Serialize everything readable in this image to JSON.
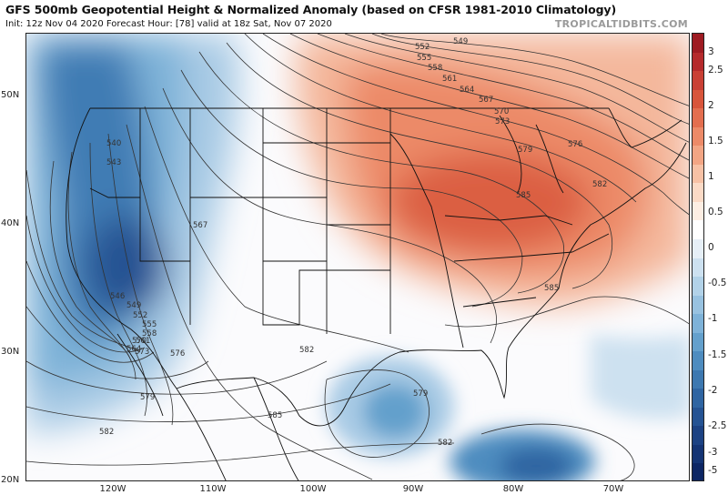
{
  "header": {
    "title": "GFS 500mb Geopotential Height & Normalized Anomaly (based on CFSR 1981-2010 Climatology)",
    "subtitle": "Init: 12z Nov 04 2020   Forecast Hour: [78]   valid at 18z Sat, Nov 07 2020",
    "credit": "TROPICALTIDBITS.COM"
  },
  "map": {
    "lat_labels": [
      "50N",
      "40N",
      "30N",
      "20N"
    ],
    "lon_labels": [
      "120W",
      "110W",
      "100W",
      "90W",
      "80W",
      "70W"
    ],
    "contour_labels": [
      "549",
      "552",
      "555",
      "558",
      "561",
      "564",
      "567",
      "570",
      "573",
      "576",
      "579",
      "582",
      "585",
      "540",
      "543",
      "546",
      "549",
      "552",
      "555",
      "558",
      "561",
      "564",
      "567",
      "570",
      "573",
      "576",
      "579",
      "582",
      "585",
      "582",
      "585",
      "579",
      "582"
    ],
    "anomaly_colors": {
      "strong_negative": "#2b5c9e",
      "negative": "#7eb2d8",
      "neutral": "#ffffff",
      "positive": "#f0a07e",
      "strong_positive": "#d8553b"
    }
  },
  "colorbar": {
    "tick_labels": [
      "3",
      "2.5",
      "2",
      "1.5",
      "1",
      "0.5",
      "0",
      "-0.5",
      "-1",
      "-1.5",
      "-2",
      "-2.5",
      "-3",
      "-5"
    ],
    "segment_colors": [
      "#9e1b22",
      "#b52a2c",
      "#c94035",
      "#d8553b",
      "#e36e4f",
      "#ec8a68",
      "#f2a584",
      "#f7c1a5",
      "#fbdac6",
      "#fdeee3",
      "#ffffff",
      "#e6eff7",
      "#cde1f0",
      "#b2d2e8",
      "#98c2e0",
      "#7eb2d8",
      "#64a0cc",
      "#4e8cbf",
      "#3d78b0",
      "#2f65a2",
      "#255393",
      "#1c4283",
      "#143474",
      "#0d2664"
    ]
  }
}
